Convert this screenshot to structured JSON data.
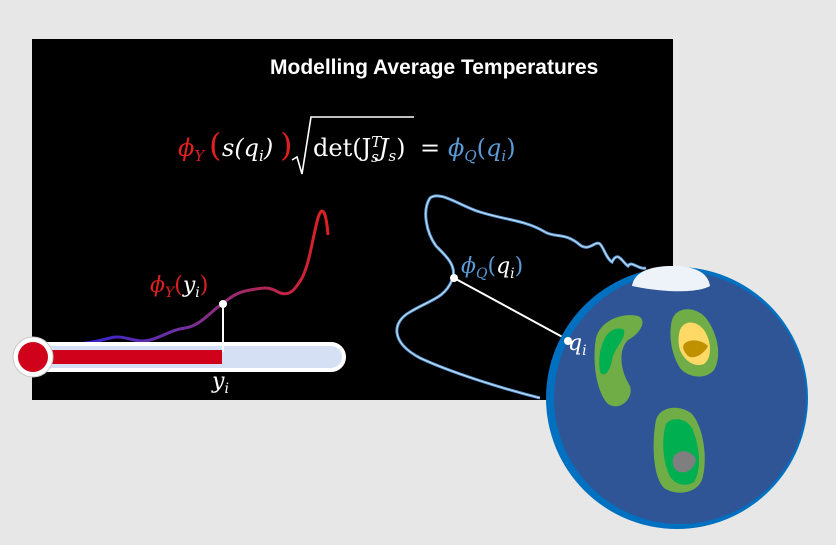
{
  "title": "Modelling Average Temperatures",
  "equation": {
    "lhs_phi": "ϕ",
    "lhs_phi_sub": "Y",
    "s_arg": "s(q",
    "s_arg_sub": "i",
    "det": "det(J",
    "det_sup": "T",
    "det_sub": "s",
    "det_tail": "J",
    "det_tail_sub": "s",
    "equals": "=",
    "rhs_phi": "ϕ",
    "rhs_phi_sub": "Q",
    "rhs_q": "q",
    "rhs_q_sub": "i"
  },
  "labels": {
    "phi_y": "ϕ",
    "phi_y_sub": "Y",
    "y_var": "y",
    "y_sub": "i",
    "phi_q": "ϕ",
    "phi_q_sub": "Q",
    "q_var": "q",
    "q_sub": "i"
  },
  "colors": {
    "background": "#e7e7e7",
    "panel": "#000000",
    "red": "#e02020",
    "blue": "#5b9bd5",
    "purple": "#7030a0",
    "globe_ocean": "#2f5597",
    "globe_rim": "#0070c0",
    "land_green": "#70ad47",
    "land_bright": "#00b050",
    "land_yellow": "#ffd966",
    "land_gold": "#bf9000",
    "ice": "#eef3fa",
    "thermo_fill": "#d0021b",
    "thermo_tube": "#d6e0f5"
  },
  "thermometer_fill_fraction": 0.64
}
